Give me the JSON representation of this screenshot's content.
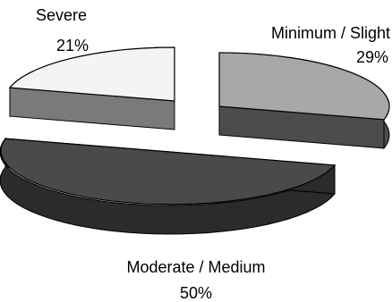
{
  "chart_data": {
    "type": "pie",
    "style": "3d-exploded",
    "slices": [
      {
        "label": "Severe",
        "value": 21,
        "display": "21%",
        "color": "#f4f4f4",
        "side_color": "#7a7a7a"
      },
      {
        "label": "Minimum / Slight",
        "value": 29,
        "display": "29%",
        "color": "#a8a8a8",
        "side_color": "#4c4c4c"
      },
      {
        "label": "Moderate / Medium",
        "value": 50,
        "display": "50%",
        "color": "#4a4a4a",
        "side_color": "#2b2b2b"
      }
    ]
  }
}
